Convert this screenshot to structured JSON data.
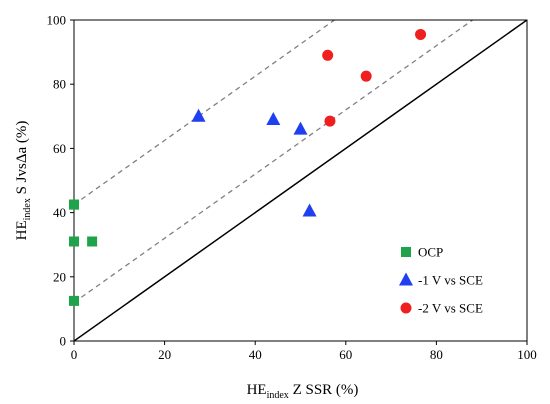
{
  "chart_data": {
    "type": "scatter",
    "xlim": [
      0,
      100
    ],
    "ylim": [
      0,
      100
    ],
    "x_ticks": [
      "0",
      "20",
      "40",
      "60",
      "80",
      "100"
    ],
    "y_ticks": [
      "0",
      "20",
      "40",
      "60",
      "80",
      "100"
    ],
    "xlabel": {
      "prefix": "HE",
      "sub": "index",
      "suffix": " Z SSR (%)"
    },
    "ylabel": {
      "prefix": "HE",
      "sub": "index",
      "suffix": " S JvsΔa (%)"
    },
    "grid": false,
    "legend_position": "bottom-right",
    "reference_lines": [
      {
        "style": "solid",
        "color": "#000000",
        "x": [
          0,
          100
        ],
        "y": [
          0,
          100
        ]
      },
      {
        "style": "dashed",
        "color": "#808080",
        "x": [
          0,
          88
        ],
        "y": [
          12,
          100
        ]
      },
      {
        "style": "dashed",
        "color": "#808080",
        "x": [
          0,
          57.5
        ],
        "y": [
          42.5,
          100
        ]
      }
    ],
    "series": [
      {
        "name": "OCP",
        "marker": "square",
        "color": "#1fa34a",
        "x": [
          0,
          0,
          0,
          4,
          0
        ],
        "y": [
          42.5,
          31,
          12.5,
          31,
          42.5
        ]
      },
      {
        "name": "-1 V vs SCE",
        "marker": "triangle",
        "color": "#1f3ff0",
        "x": [
          27.5,
          44,
          50,
          52
        ],
        "y": [
          70,
          69,
          66,
          40.5
        ]
      },
      {
        "name": "-2 V vs SCE",
        "marker": "circle",
        "color": "#f01f1f",
        "x": [
          56,
          76.5,
          64.5,
          56.5
        ],
        "y": [
          89,
          95.5,
          82.5,
          68.5
        ]
      }
    ]
  }
}
